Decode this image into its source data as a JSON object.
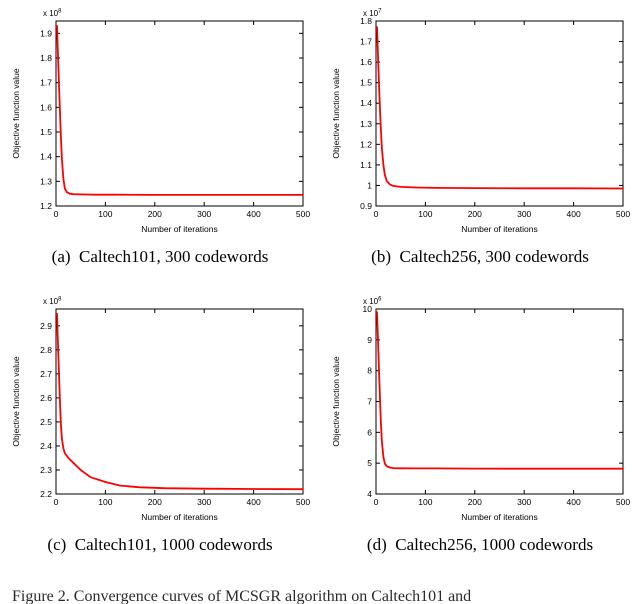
{
  "figure": {
    "subcaptions": [
      "(a)  Caltech101, 300 codewords",
      "(b)  Caltech256, 300 codewords",
      "(c)  Caltech101, 1000 codewords",
      "(d)  Caltech256, 1000 codewords"
    ],
    "main_caption": "Figure 2.  Convergence curves of MCSGR algorithm on Caltech101 and"
  },
  "chart_data": [
    {
      "id": "a",
      "type": "line",
      "title": "",
      "xlabel": "Number of iterations",
      "ylabel": "Objective function value",
      "exponent": "x 10^8",
      "xlim": [
        0,
        500
      ],
      "xticks": [
        0,
        100,
        200,
        300,
        400,
        500
      ],
      "ylim": [
        1.2,
        1.95
      ],
      "yticks": [
        1.2,
        1.3,
        1.4,
        1.5,
        1.6,
        1.7,
        1.8,
        1.9
      ],
      "line_color": "#ff0000",
      "x": [
        2,
        4,
        6,
        8,
        10,
        12,
        15,
        18,
        22,
        28,
        35,
        50,
        80,
        120,
        200,
        300,
        400,
        500
      ],
      "y": [
        1.93,
        1.81,
        1.69,
        1.58,
        1.48,
        1.39,
        1.31,
        1.27,
        1.256,
        1.25,
        1.248,
        1.247,
        1.246,
        1.246,
        1.245,
        1.245,
        1.245,
        1.245
      ]
    },
    {
      "id": "b",
      "type": "line",
      "title": "",
      "xlabel": "Number of iterations",
      "ylabel": "Objective function value",
      "exponent": "x 10^7",
      "xlim": [
        0,
        500
      ],
      "xticks": [
        0,
        100,
        200,
        300,
        400,
        500
      ],
      "ylim": [
        0.9,
        1.8
      ],
      "yticks": [
        0.9,
        1,
        1.1,
        1.2,
        1.3,
        1.4,
        1.5,
        1.6,
        1.7,
        1.8
      ],
      "line_color": "#ff0000",
      "x": [
        2,
        4,
        6,
        8,
        10,
        12,
        15,
        18,
        22,
        28,
        35,
        50,
        80,
        120,
        200,
        300,
        400,
        500
      ],
      "y": [
        1.77,
        1.63,
        1.49,
        1.37,
        1.27,
        1.18,
        1.1,
        1.05,
        1.02,
        1.005,
        0.998,
        0.993,
        0.99,
        0.988,
        0.987,
        0.986,
        0.986,
        0.985
      ]
    },
    {
      "id": "c",
      "type": "line",
      "title": "",
      "xlabel": "Number of iterations",
      "ylabel": "Objective function value",
      "exponent": "x 10^8",
      "xlim": [
        0,
        500
      ],
      "xticks": [
        0,
        100,
        200,
        300,
        400,
        500
      ],
      "ylim": [
        2.2,
        2.97
      ],
      "yticks": [
        2.2,
        2.3,
        2.4,
        2.5,
        2.6,
        2.7,
        2.8,
        2.9
      ],
      "line_color": "#ff0000",
      "x": [
        2,
        4,
        6,
        8,
        10,
        12,
        15,
        18,
        25,
        35,
        50,
        70,
        100,
        130,
        170,
        220,
        300,
        400,
        500
      ],
      "y": [
        2.95,
        2.82,
        2.7,
        2.58,
        2.49,
        2.43,
        2.39,
        2.37,
        2.35,
        2.33,
        2.3,
        2.27,
        2.25,
        2.235,
        2.228,
        2.224,
        2.222,
        2.221,
        2.22
      ]
    },
    {
      "id": "d",
      "type": "line",
      "title": "",
      "xlabel": "Number of iterations",
      "ylabel": "Objective function value",
      "exponent": "x 10^6",
      "xlim": [
        0,
        500
      ],
      "xticks": [
        0,
        100,
        200,
        300,
        400,
        500
      ],
      "ylim": [
        4,
        10
      ],
      "yticks": [
        4,
        5,
        6,
        7,
        8,
        9,
        10
      ],
      "line_color": "#ff0000",
      "x": [
        2,
        4,
        6,
        8,
        10,
        12,
        15,
        18,
        22,
        28,
        35,
        50,
        80,
        120,
        200,
        300,
        400,
        500
      ],
      "y": [
        9.9,
        9.0,
        8.0,
        7.1,
        6.3,
        5.7,
        5.2,
        4.98,
        4.9,
        4.86,
        4.84,
        4.835,
        4.83,
        4.83,
        4.825,
        4.82,
        4.82,
        4.82
      ]
    }
  ]
}
